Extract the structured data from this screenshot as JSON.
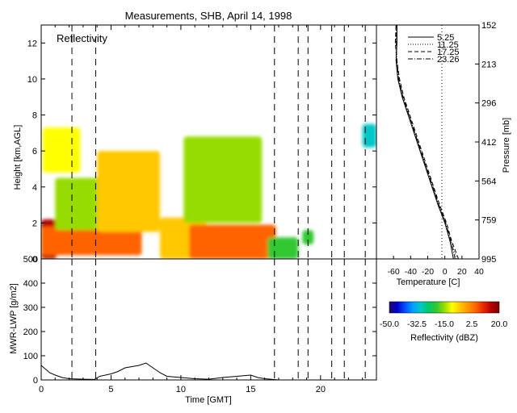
{
  "title": "Measurements, SHB, April 14, 1998",
  "chart_data": [
    {
      "type": "heatmap",
      "panel_label": "Reflectivity",
      "xlabel": "",
      "ylabel": "Height [km,AGL]",
      "xlim": [
        0,
        24
      ],
      "ylim": [
        0,
        13
      ],
      "yticks": [
        0,
        2,
        4,
        6,
        8,
        10,
        12
      ],
      "dashed_times": [
        2.2,
        3.9,
        16.7,
        18.4,
        19.1,
        20.8,
        21.7,
        23.2
      ],
      "echo_regions": [
        {
          "x_start": 0.0,
          "x_end": 1.1,
          "y_bottom": 0.0,
          "y_top": 2.2,
          "dbz": 12
        },
        {
          "x_start": 0.0,
          "x_end": 7.2,
          "y_bottom": 0.2,
          "y_top": 1.8,
          "dbz": 5
        },
        {
          "x_start": 0.1,
          "x_end": 2.8,
          "y_bottom": 4.8,
          "y_top": 7.3,
          "dbz": -12
        },
        {
          "x_start": 1.0,
          "x_end": 6.8,
          "y_bottom": 1.6,
          "y_top": 4.5,
          "dbz": -14
        },
        {
          "x_start": 4.0,
          "x_end": 8.5,
          "y_bottom": 1.5,
          "y_top": 6.0,
          "dbz": -8
        },
        {
          "x_start": 8.5,
          "x_end": 11.8,
          "y_bottom": 0.0,
          "y_top": 2.3,
          "dbz": -6
        },
        {
          "x_start": 10.6,
          "x_end": 16.8,
          "y_bottom": 0.0,
          "y_top": 1.9,
          "dbz": 4
        },
        {
          "x_start": 10.2,
          "x_end": 15.8,
          "y_bottom": 2.0,
          "y_top": 6.8,
          "dbz": -16
        },
        {
          "x_start": 16.2,
          "x_end": 18.4,
          "y_bottom": 0.0,
          "y_top": 1.2,
          "dbz": -20
        },
        {
          "x_start": 18.7,
          "x_end": 19.5,
          "y_bottom": 0.8,
          "y_top": 1.6,
          "dbz": -22
        },
        {
          "x_start": 23.0,
          "x_end": 24.0,
          "y_bottom": 6.2,
          "y_top": 7.5,
          "dbz": -28
        }
      ]
    },
    {
      "type": "line",
      "xlabel": "",
      "ylabel": "Pressure [mb]",
      "x_axis_title": "Temperature [C]",
      "xlim": [
        -80,
        40
      ],
      "xticks": [
        -60,
        -40,
        -20,
        0,
        20,
        40
      ],
      "pressure_ticks": [
        "152",
        "213",
        "296",
        "412",
        "564",
        "759",
        "995"
      ],
      "heights_km": [
        0.0,
        1.0,
        2.0,
        3.0,
        4.0,
        5.0,
        6.0,
        7.0,
        8.0,
        9.0,
        10.0,
        11.0,
        12.0,
        13.0
      ],
      "series": [
        {
          "name": "5.25",
          "style": "solid",
          "temps": [
            10,
            6,
            0,
            -8,
            -15,
            -22,
            -29,
            -36,
            -43,
            -50,
            -55,
            -57,
            -56,
            -56
          ]
        },
        {
          "name": "11.25",
          "style": "dotted",
          "temps": [
            14,
            7,
            1,
            -7,
            -14,
            -21,
            -28,
            -35,
            -42,
            -49,
            -54,
            -57,
            -57,
            -56
          ]
        },
        {
          "name": "17.25",
          "style": "dashed",
          "temps": [
            16,
            8,
            2,
            -6,
            -13,
            -20,
            -27,
            -34,
            -41,
            -48,
            -53,
            -56,
            -58,
            -57
          ]
        },
        {
          "name": "23.26",
          "style": "dashdot",
          "temps": [
            12,
            7,
            1,
            -7,
            -14,
            -21,
            -28,
            -35,
            -42,
            -49,
            -54,
            -56,
            -57,
            -57
          ]
        }
      ]
    },
    {
      "type": "line",
      "xlabel": "Time [GMT]",
      "ylabel": "MWR-LWP [g/m2]",
      "xlim": [
        0,
        24
      ],
      "ylim": [
        0,
        500
      ],
      "xticks": [
        0,
        5,
        10,
        15,
        20
      ],
      "yticks": [
        0,
        100,
        200,
        300,
        400,
        500
      ],
      "x": [
        0,
        0.3,
        0.6,
        1.0,
        1.5,
        2.0,
        3.0,
        3.8,
        4.2,
        5.0,
        5.5,
        6.0,
        6.5,
        7.0,
        7.5,
        8.0,
        8.5,
        9.0,
        10,
        11,
        12,
        13,
        14,
        15,
        15.5,
        16,
        17,
        24
      ],
      "values": [
        60,
        45,
        30,
        20,
        10,
        5,
        3,
        2,
        15,
        25,
        35,
        50,
        55,
        60,
        70,
        50,
        30,
        15,
        10,
        5,
        3,
        10,
        15,
        20,
        10,
        5,
        0,
        0
      ]
    },
    {
      "type": "heatmap",
      "xlabel": "Reflectivity (dBZ)",
      "ticks": [
        "-50.0",
        "-32.5",
        "-15.0",
        "2.5",
        "20.0"
      ],
      "range": [
        -50,
        20
      ],
      "colors": [
        "#1e0a6e",
        "#0000c8",
        "#0050ff",
        "#00a0ff",
        "#00c8c8",
        "#00c864",
        "#32c832",
        "#96dc00",
        "#ffff00",
        "#ffc800",
        "#ff9600",
        "#ff6400",
        "#e62800",
        "#b40000",
        "#780000"
      ]
    }
  ]
}
